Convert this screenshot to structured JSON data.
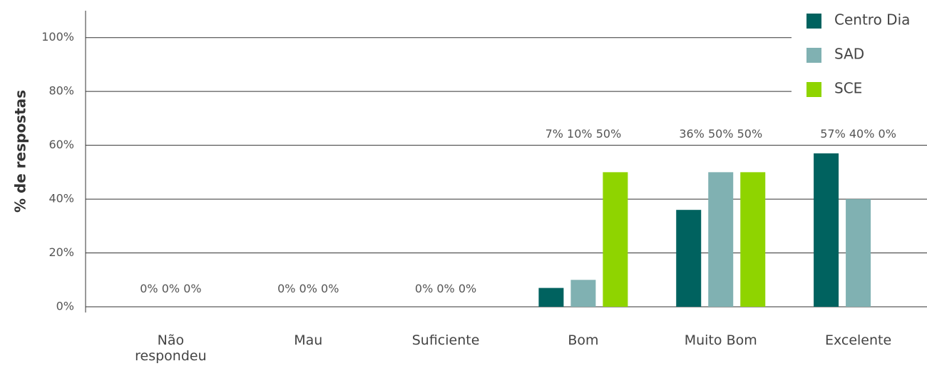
{
  "chart_data": {
    "type": "bar",
    "y_label": "% de respostas",
    "categories": [
      "Não respondeu",
      "Mau",
      "Suficiente",
      "Bom",
      "Muito Bom",
      "Excelente"
    ],
    "series": [
      {
        "name": "Centro Dia",
        "color": "#00625f",
        "values": [
          0,
          0,
          0,
          7,
          36,
          57
        ],
        "value_labels": [
          "0%",
          "0%",
          "0%",
          "7%",
          "36%",
          "57%"
        ]
      },
      {
        "name": "SAD",
        "color": "#80b1b2",
        "values": [
          0,
          0,
          0,
          10,
          50,
          40
        ],
        "value_labels": [
          "0%",
          "0%",
          "0%",
          "10%",
          "50%",
          "40%"
        ]
      },
      {
        "name": "SCE",
        "color": "#8fd400",
        "values": [
          0,
          0,
          0,
          50,
          50,
          0
        ],
        "value_labels": [
          "0%",
          "0%",
          "0%",
          "50%",
          "50%",
          "0%"
        ]
      }
    ],
    "ylim": [
      0,
      110
    ],
    "yticks": [
      {
        "value": 0,
        "label": "0%"
      },
      {
        "value": 20,
        "label": "20%"
      },
      {
        "value": 40,
        "label": "40%"
      },
      {
        "value": 60,
        "label": "60%"
      },
      {
        "value": 80,
        "label": "80%"
      },
      {
        "value": 100,
        "label": "100%"
      }
    ],
    "grid": true,
    "legend": "top-right"
  }
}
